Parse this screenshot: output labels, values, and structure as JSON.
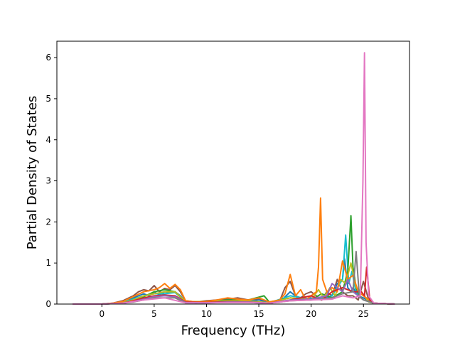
{
  "chart_data": {
    "type": "line",
    "title": "",
    "xlabel": "Frequency (THz)",
    "ylabel": "Partial Density of States",
    "xlim": [
      -4.3,
      29.4
    ],
    "ylim": [
      0,
      6.4
    ],
    "xticks": [
      0,
      5,
      10,
      15,
      20,
      25
    ],
    "yticks": [
      0,
      1,
      2,
      3,
      4,
      5,
      6
    ],
    "grid": false,
    "legend": "none",
    "palette": [
      "#1f77b4",
      "#ff7f0e",
      "#2ca02c",
      "#d62728",
      "#9467bd",
      "#8c564b",
      "#e377c2",
      "#7f7f7f",
      "#bcbd22",
      "#17becf"
    ],
    "series": [
      {
        "color": "#8c564b",
        "x": [
          -2.8,
          0,
          1,
          2,
          3,
          3.5,
          4,
          4.5,
          5,
          5.5,
          6,
          6.5,
          7,
          7.5,
          8,
          9,
          10,
          11,
          12,
          13,
          14,
          15,
          16,
          17,
          17.5,
          18,
          18.5,
          19,
          19.5,
          20,
          20.5,
          21,
          21.5,
          22,
          22.5,
          23,
          23.5,
          24,
          24.5,
          25,
          25.5,
          26,
          28
        ],
        "values": [
          0,
          0,
          0.02,
          0.08,
          0.2,
          0.3,
          0.35,
          0.32,
          0.45,
          0.3,
          0.38,
          0.35,
          0.45,
          0.3,
          0.08,
          0.05,
          0.08,
          0.1,
          0.12,
          0.15,
          0.1,
          0.12,
          0.05,
          0.08,
          0.4,
          0.55,
          0.2,
          0.15,
          0.25,
          0.3,
          0.2,
          0.1,
          0.3,
          0.2,
          0.6,
          0.3,
          0.2,
          0.2,
          0.1,
          0.55,
          0.1,
          0.02,
          0
        ]
      },
      {
        "color": "#1f77b4",
        "x": [
          -2.8,
          0,
          1,
          2,
          3,
          4,
          4.5,
          5,
          5.5,
          6,
          6.5,
          7,
          7.5,
          8,
          9,
          10,
          11,
          12,
          13,
          14,
          15,
          16,
          17,
          18,
          19,
          20,
          21,
          22,
          22.5,
          23,
          23.2,
          23.5,
          23.8,
          24,
          24.5,
          25,
          26,
          28
        ],
        "values": [
          0,
          0,
          0.01,
          0.05,
          0.15,
          0.25,
          0.2,
          0.3,
          0.22,
          0.3,
          0.28,
          0.3,
          0.2,
          0.05,
          0.03,
          0.06,
          0.08,
          0.1,
          0.1,
          0.08,
          0.1,
          0.03,
          0.05,
          0.3,
          0.1,
          0.15,
          0.1,
          0.2,
          0.5,
          0.6,
          1.1,
          0.4,
          0.3,
          0.4,
          0.2,
          0.15,
          0.02,
          0
        ]
      },
      {
        "color": "#17becf",
        "x": [
          -2.8,
          0,
          2,
          3,
          4,
          5,
          6,
          7,
          8,
          10,
          12,
          14,
          16,
          18,
          20,
          22,
          22.5,
          23,
          23.3,
          23.6,
          23.9,
          24.2,
          24.5,
          25,
          26,
          28
        ],
        "values": [
          0,
          0,
          0.04,
          0.12,
          0.2,
          0.25,
          0.25,
          0.28,
          0.05,
          0.05,
          0.08,
          0.07,
          0.03,
          0.2,
          0.12,
          0.2,
          0.4,
          0.6,
          1.68,
          0.5,
          0.8,
          0.4,
          0.2,
          0.1,
          0.02,
          0
        ]
      },
      {
        "color": "#2ca02c",
        "x": [
          -2.8,
          0,
          2,
          3,
          4,
          5,
          6,
          7,
          8,
          10,
          12,
          14,
          15.5,
          16,
          18,
          20,
          21,
          22,
          23,
          23.5,
          23.8,
          24.0,
          24.3,
          24.6,
          25,
          26,
          28
        ],
        "values": [
          0,
          0,
          0.03,
          0.1,
          0.18,
          0.3,
          0.35,
          0.3,
          0.05,
          0.05,
          0.1,
          0.1,
          0.2,
          0.05,
          0.15,
          0.1,
          0.25,
          0.15,
          0.3,
          0.8,
          2.15,
          0.9,
          0.4,
          0.2,
          0.1,
          0.02,
          0
        ]
      },
      {
        "color": "#bcbd22",
        "x": [
          -2.8,
          0,
          2,
          3,
          4,
          5,
          6,
          7,
          8,
          10,
          12,
          14,
          16,
          18,
          20,
          20.7,
          21.2,
          21.8,
          22.3,
          22.8,
          23.3,
          23.8,
          24.3,
          24.8,
          25.5,
          26,
          28
        ],
        "values": [
          0,
          0,
          0.03,
          0.1,
          0.2,
          0.25,
          0.3,
          0.3,
          0.06,
          0.06,
          0.08,
          0.08,
          0.03,
          0.15,
          0.1,
          0.35,
          0.15,
          0.4,
          0.2,
          0.6,
          0.5,
          1.0,
          0.4,
          0.3,
          0.05,
          0.02,
          0
        ]
      },
      {
        "color": "#ff7f0e",
        "x": [
          -2.8,
          0,
          1,
          2,
          3,
          4,
          5,
          5.5,
          6,
          6.5,
          7,
          7.5,
          8,
          9,
          10,
          11,
          12,
          13,
          14,
          15,
          16,
          17,
          17.5,
          18,
          18.5,
          19,
          19.5,
          20,
          20.5,
          20.7,
          20.9,
          21.1,
          21.5,
          22,
          22.5,
          23,
          23.5,
          24,
          24.5,
          25,
          26,
          28
        ],
        "values": [
          0,
          0,
          0.02,
          0.06,
          0.18,
          0.3,
          0.35,
          0.4,
          0.5,
          0.38,
          0.48,
          0.35,
          0.08,
          0.05,
          0.06,
          0.1,
          0.15,
          0.12,
          0.1,
          0.15,
          0.05,
          0.1,
          0.25,
          0.72,
          0.2,
          0.35,
          0.1,
          0.2,
          0.3,
          0.9,
          2.58,
          0.6,
          0.3,
          0.4,
          0.3,
          1.05,
          0.6,
          0.7,
          0.3,
          0.2,
          0.02,
          0
        ]
      },
      {
        "color": "#d62728",
        "x": [
          -2.8,
          0,
          2,
          3,
          4,
          5,
          6,
          7,
          8,
          10,
          12,
          14,
          16,
          18,
          19,
          20,
          21,
          22,
          23,
          24,
          24.8,
          25.1,
          25.3,
          25.6,
          26,
          28
        ],
        "values": [
          0,
          0,
          0.02,
          0.08,
          0.15,
          0.2,
          0.22,
          0.2,
          0.05,
          0.04,
          0.06,
          0.05,
          0.02,
          0.1,
          0.15,
          0.2,
          0.1,
          0.3,
          0.4,
          0.3,
          0.3,
          0.2,
          0.9,
          0.1,
          0.02,
          0
        ]
      },
      {
        "color": "#9467bd",
        "x": [
          -2.8,
          0,
          2,
          3,
          4,
          5,
          6,
          7,
          8,
          10,
          12,
          14,
          16,
          18,
          20,
          21.5,
          22,
          22.5,
          23,
          23.5,
          24,
          24.5,
          25,
          26,
          28
        ],
        "values": [
          0,
          0,
          0.02,
          0.06,
          0.12,
          0.18,
          0.2,
          0.18,
          0.04,
          0.03,
          0.05,
          0.05,
          0.02,
          0.1,
          0.12,
          0.2,
          0.5,
          0.4,
          0.3,
          0.6,
          0.3,
          0.2,
          0.1,
          0.02,
          0
        ]
      },
      {
        "color": "#7f7f7f",
        "x": [
          -2.8,
          0,
          2,
          3,
          4,
          5,
          6,
          7,
          8,
          10,
          12,
          14,
          16,
          18,
          20,
          22,
          23,
          24,
          24.3,
          24.6,
          25,
          26,
          28
        ],
        "values": [
          0,
          0,
          0.02,
          0.05,
          0.1,
          0.15,
          0.15,
          0.15,
          0.03,
          0.03,
          0.04,
          0.04,
          0.02,
          0.08,
          0.1,
          0.15,
          0.25,
          0.3,
          1.28,
          0.2,
          0.1,
          0.02,
          0
        ]
      },
      {
        "color": "#e377c2",
        "x": [
          -2.8,
          0,
          2,
          4,
          6,
          8,
          10,
          12,
          14,
          16,
          18,
          20,
          22,
          23,
          24,
          24.7,
          24.95,
          25.1,
          25.25,
          25.5,
          26,
          28
        ],
        "values": [
          0,
          0,
          0.02,
          0.1,
          0.15,
          0.03,
          0.03,
          0.04,
          0.04,
          0.02,
          0.08,
          0.1,
          0.12,
          0.2,
          0.15,
          0.2,
          3.0,
          6.12,
          1.5,
          0.2,
          0.02,
          0
        ]
      }
    ]
  }
}
